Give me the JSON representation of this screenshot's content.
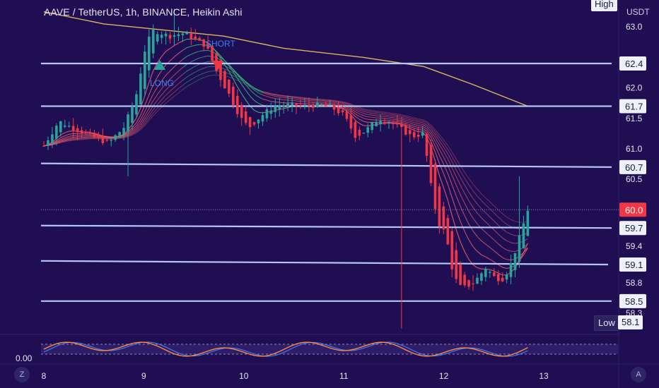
{
  "header": {
    "title": "AAVE / TetherUS, 1h, BINANCE, Heikin Ashi",
    "currency": "USDT",
    "high_label": "High",
    "low_label": "Low",
    "low_value": "58.1"
  },
  "colors": {
    "background": "#1f0f52",
    "bull": "#26a69a",
    "bear": "#f23645",
    "level_line": "#b5c6f5",
    "long_sma": "#f0c75e",
    "ribbon": "#f06070",
    "ribbon_green": "#3fbf7f",
    "last_price": "#f23645"
  },
  "chart_data": {
    "type": "candlestick",
    "symbol": "AAVE / TetherUS",
    "interval": "1h",
    "exchange": "BINANCE",
    "style": "Heikin Ashi",
    "x_axis": {
      "ticks": [
        "8",
        "9",
        "10",
        "11",
        "12",
        "13"
      ]
    },
    "y_axis": {
      "unit": "USDT",
      "tick_labels": [
        "63.0",
        "62.0",
        "61.5",
        "61.0",
        "60.5",
        "59.4",
        "58.8",
        "58.3"
      ],
      "range": [
        58.0,
        63.35
      ]
    },
    "last_price": 60.0,
    "horizontal_levels": [
      62.4,
      61.7,
      60.7,
      59.7,
      59.1,
      58.5
    ],
    "signals": [
      {
        "label": "LONG",
        "type": "buy",
        "price": 62.5
      },
      {
        "label": "SHORT",
        "type": "sell",
        "price": 62.45
      }
    ],
    "oscillator": {
      "level_label": "0.00"
    },
    "grid": false
  },
  "controls": {
    "left_button": "Z",
    "right_button": "A"
  }
}
